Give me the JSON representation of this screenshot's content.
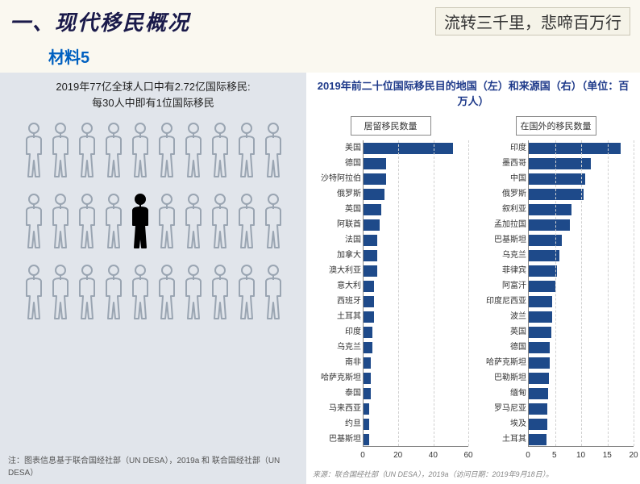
{
  "header": {
    "section_title": "一、现代移民概况",
    "poem": "流转三千里，悲啼百万行",
    "material_label": "材料5"
  },
  "left": {
    "title_line1": "2019年77亿全球人口中有2.72亿国际移民:",
    "title_line2": "每30人中即有1位国际移民",
    "person_outline_color": "#9aa5b2",
    "person_fill_color": "#000000",
    "background_color": "#e1e5eb",
    "grid": {
      "rows": 3,
      "cols": 10,
      "highlighted_row": 1,
      "highlighted_col": 4
    },
    "footnote": "注：图表信息基于联合国经社部（UN DESA），2019a 和 联合国经社部（UN DESA）"
  },
  "right": {
    "title": "2019年前二十位国际移民目的地国（左）和来源国（右）（单位：百万人）",
    "bar_color": "#1e4a8a",
    "background_color": "#ffffff",
    "grid_color": "#d0d0d0",
    "label_fontsize": 10,
    "chart_left": {
      "header": "居留移民数量",
      "xlim": [
        0,
        60
      ],
      "xtick_step": 20,
      "xticks": [
        "0",
        "20",
        "40",
        "60"
      ],
      "items": [
        {
          "label": "美国",
          "value": 51
        },
        {
          "label": "德国",
          "value": 13
        },
        {
          "label": "沙特阿拉伯",
          "value": 13
        },
        {
          "label": "俄罗斯",
          "value": 12
        },
        {
          "label": "英国",
          "value": 10
        },
        {
          "label": "阿联酋",
          "value": 9
        },
        {
          "label": "法国",
          "value": 8
        },
        {
          "label": "加拿大",
          "value": 8
        },
        {
          "label": "澳大利亚",
          "value": 8
        },
        {
          "label": "意大利",
          "value": 6
        },
        {
          "label": "西班牙",
          "value": 6
        },
        {
          "label": "土耳其",
          "value": 6
        },
        {
          "label": "印度",
          "value": 5
        },
        {
          "label": "乌克兰",
          "value": 5
        },
        {
          "label": "南非",
          "value": 4
        },
        {
          "label": "哈萨克斯坦",
          "value": 4
        },
        {
          "label": "泰国",
          "value": 4
        },
        {
          "label": "马来西亚",
          "value": 3
        },
        {
          "label": "约旦",
          "value": 3
        },
        {
          "label": "巴基斯坦",
          "value": 3
        }
      ]
    },
    "chart_right": {
      "header": "在国外的移民数量",
      "xlim": [
        0,
        20
      ],
      "xtick_step": 5,
      "xticks": [
        "0",
        "5",
        "10",
        "15",
        "20"
      ],
      "items": [
        {
          "label": "印度",
          "value": 17.5
        },
        {
          "label": "墨西哥",
          "value": 11.8
        },
        {
          "label": "中国",
          "value": 10.7
        },
        {
          "label": "俄罗斯",
          "value": 10.5
        },
        {
          "label": "叙利亚",
          "value": 8.2
        },
        {
          "label": "孟加拉国",
          "value": 7.8
        },
        {
          "label": "巴基斯坦",
          "value": 6.3
        },
        {
          "label": "乌克兰",
          "value": 5.9
        },
        {
          "label": "菲律宾",
          "value": 5.4
        },
        {
          "label": "阿富汗",
          "value": 5.1
        },
        {
          "label": "印度尼西亚",
          "value": 4.5
        },
        {
          "label": "波兰",
          "value": 4.4
        },
        {
          "label": "英国",
          "value": 4.3
        },
        {
          "label": "德国",
          "value": 4.0
        },
        {
          "label": "哈萨克斯坦",
          "value": 4.0
        },
        {
          "label": "巴勒斯坦",
          "value": 3.9
        },
        {
          "label": "缅甸",
          "value": 3.7
        },
        {
          "label": "罗马尼亚",
          "value": 3.6
        },
        {
          "label": "埃及",
          "value": 3.5
        },
        {
          "label": "土耳其",
          "value": 3.4
        }
      ]
    },
    "footnote": "来源：联合国经社部（UN DESA），2019a（访问日期：2019年9月18日）。"
  }
}
